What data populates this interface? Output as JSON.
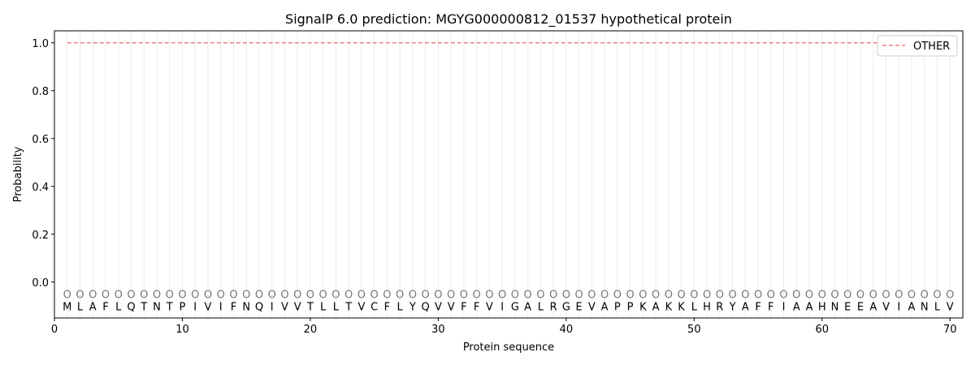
{
  "chart_data": {
    "type": "line",
    "title": "SignalP 6.0 prediction: MGYG000000812_01537 hypothetical protein",
    "xlabel": "Protein sequence",
    "ylabel": "Probability",
    "xlim": [
      0,
      71
    ],
    "ylim": [
      -0.15,
      1.05
    ],
    "xticks": [
      0,
      10,
      20,
      30,
      40,
      50,
      60,
      70
    ],
    "yticks": [
      0.0,
      0.2,
      0.4,
      0.6,
      0.8,
      1.0
    ],
    "ytick_labels": [
      "0.0",
      "0.2",
      "0.4",
      "0.6",
      "0.8",
      "1.0"
    ],
    "grid": "vertical lines at each residue",
    "legend_placement": "upper-right",
    "sequence": [
      "M",
      "L",
      "A",
      "F",
      "L",
      "Q",
      "T",
      "N",
      "T",
      "P",
      "I",
      "V",
      "I",
      "F",
      "N",
      "Q",
      "I",
      "V",
      "V",
      "T",
      "L",
      "L",
      "T",
      "V",
      "C",
      "F",
      "L",
      "Y",
      "Q",
      "V",
      "V",
      "F",
      "F",
      "V",
      "I",
      "G",
      "A",
      "L",
      "R",
      "G",
      "E",
      "V",
      "A",
      "P",
      "P",
      "K",
      "A",
      "K",
      "K",
      "L",
      "H",
      "R",
      "Y",
      "A",
      "F",
      "F",
      "I",
      "A",
      "A",
      "H",
      "N",
      "E",
      "E",
      "A",
      "V",
      "I",
      "A",
      "N",
      "L",
      "V"
    ],
    "per_residue_label": "O",
    "series": [
      {
        "name": "OTHER",
        "color": "#f08080",
        "style": "dashed",
        "x_start": 1,
        "x_end": 70,
        "value": 1.0
      }
    ]
  }
}
